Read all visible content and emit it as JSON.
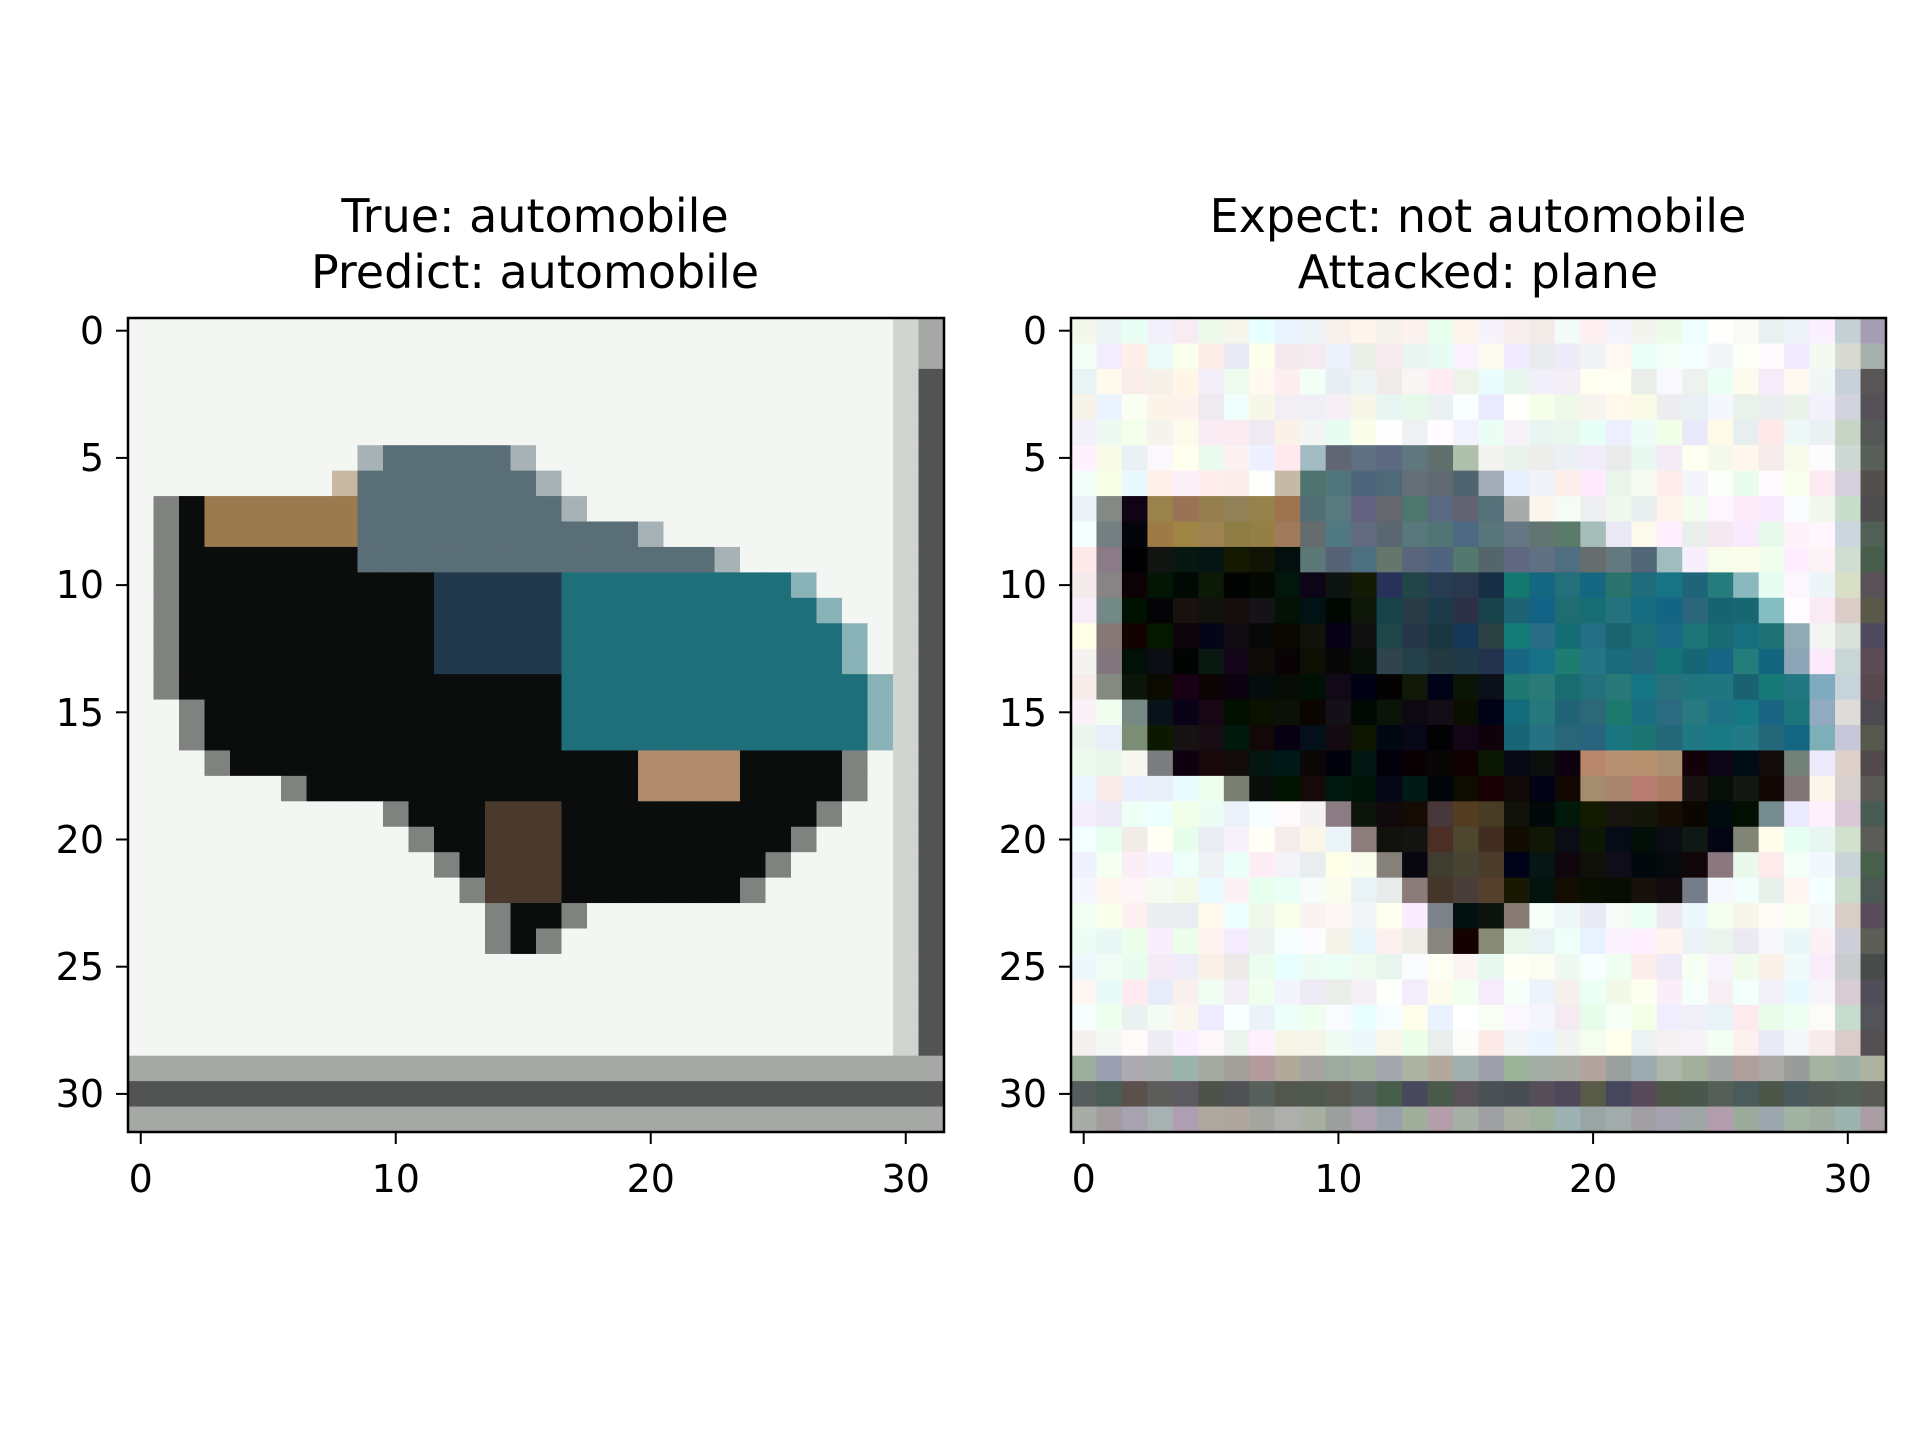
{
  "chart_data": [
    {
      "type": "heatmap",
      "content": "32x32 RGB image (CIFAR-10 sample) shown with imshow",
      "title_lines": [
        "True: automobile",
        "Predict: automobile"
      ],
      "x_ticks": [
        "0",
        "10",
        "20",
        "30"
      ],
      "y_ticks": [
        "0",
        "5",
        "10",
        "15",
        "20",
        "25",
        "30"
      ],
      "x_range": [
        -0.5,
        31.5
      ],
      "y_range": [
        31.5,
        -0.5
      ],
      "image_size": [
        32,
        32
      ]
    },
    {
      "type": "heatmap",
      "content": "32x32 RGB adversarially perturbed image shown with imshow",
      "title_lines": [
        "Expect: not automobile",
        "Attacked: plane"
      ],
      "x_ticks": [
        "0",
        "10",
        "20",
        "30"
      ],
      "y_ticks": [
        "0",
        "5",
        "10",
        "15",
        "20",
        "25",
        "30"
      ],
      "x_range": [
        -0.5,
        31.5
      ],
      "y_range": [
        31.5,
        -0.5
      ],
      "image_size": [
        32,
        32
      ]
    }
  ],
  "colors": {
    "background": "#f4f6f4",
    "car_dark": "#0b0d0c",
    "car_teal": "#1f6f7a",
    "car_blue": "#22394d",
    "car_tan": "#9a7a4e",
    "frame_dark": "#525453",
    "frame_mid": "#a6a8a6",
    "frame_light": "#d2d4d2"
  }
}
